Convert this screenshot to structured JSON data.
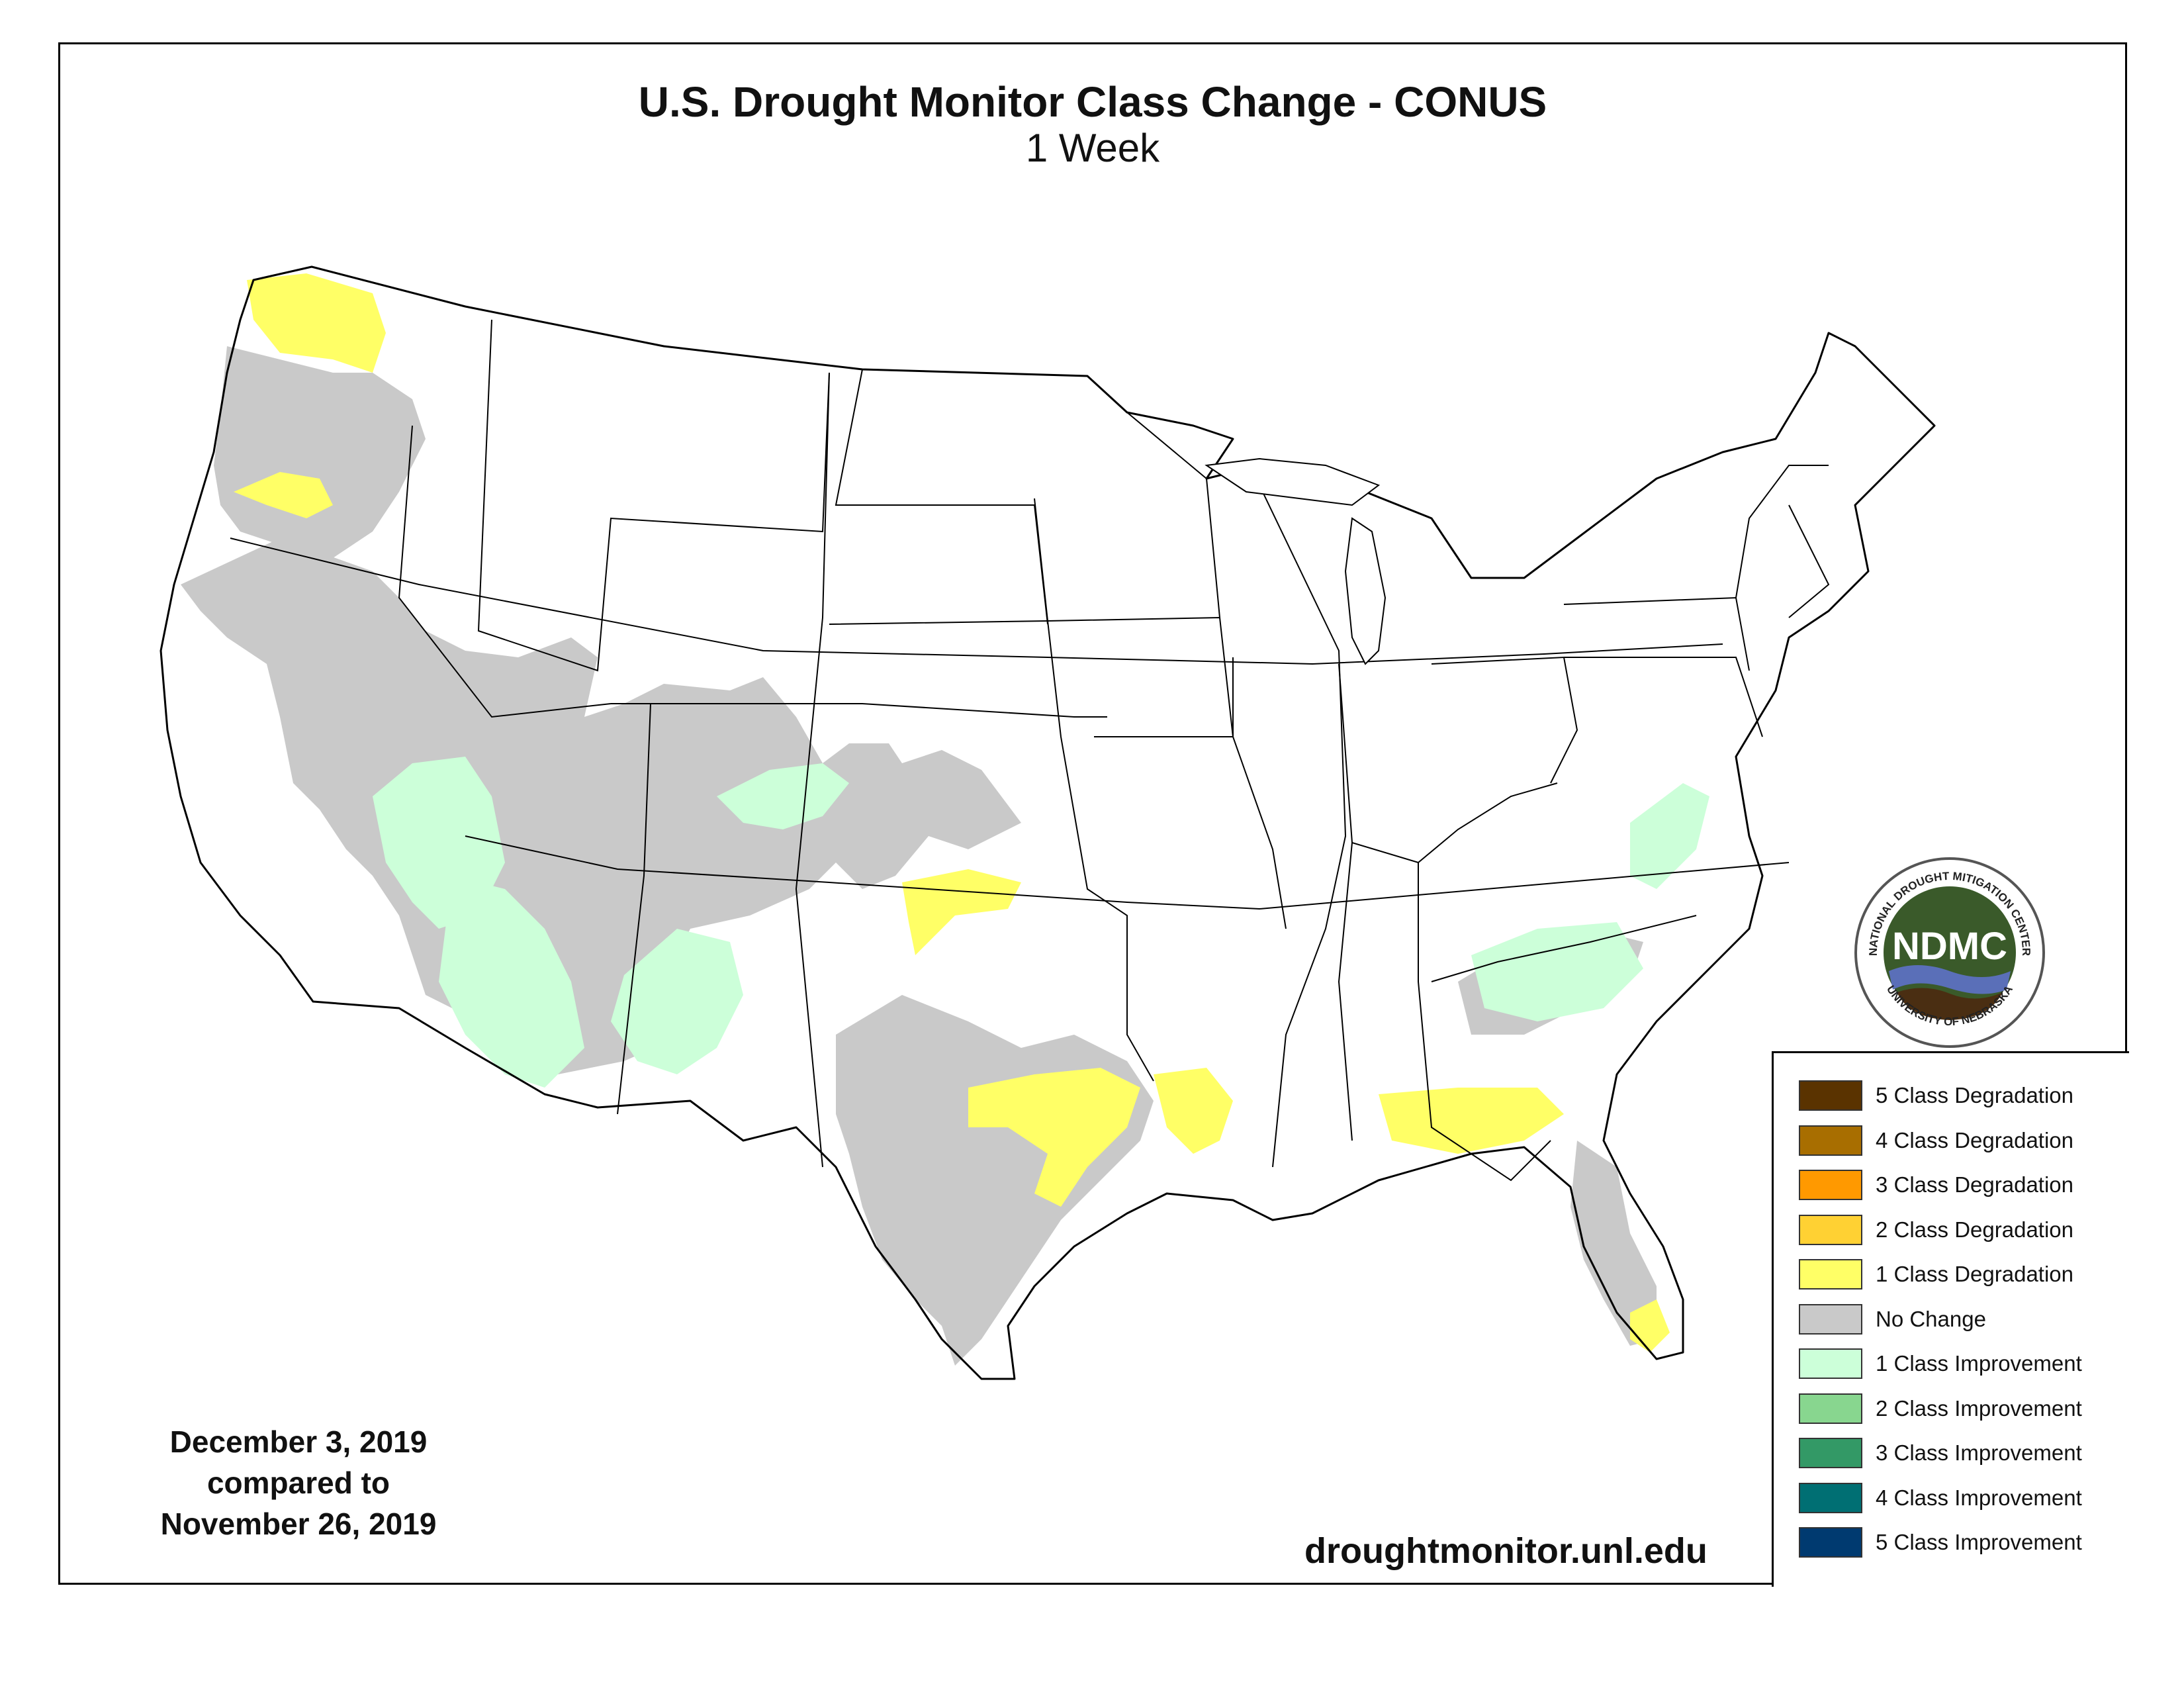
{
  "title": "U.S. Drought Monitor Class Change - CONUS",
  "subtitle": "1 Week",
  "date_text": {
    "line1": "December 3, 2019",
    "line2": "compared to",
    "line3": "November 26, 2019"
  },
  "website": "droughtmonitor.unl.edu",
  "logo": {
    "ring_text_top": "NATIONAL DROUGHT MITIGATION CENTER",
    "ring_text_bottom": "UNIVERSITY OF NEBRASKA",
    "abbr": "NDMC",
    "colors": {
      "green": "#3a5a2a",
      "blue": "#5a6fb8",
      "brown": "#4a2e12"
    }
  },
  "legend": [
    {
      "label": "5 Class Degradation",
      "color": "#5a3300"
    },
    {
      "label": "4 Class Degradation",
      "color": "#a86e00"
    },
    {
      "label": "3 Class Degradation",
      "color": "#ff9900"
    },
    {
      "label": "2 Class Degradation",
      "color": "#ffd133"
    },
    {
      "label": "1 Class Degradation",
      "color": "#ffff66"
    },
    {
      "label": "No Change",
      "color": "#c9c9c9"
    },
    {
      "label": "1 Class Improvement",
      "color": "#ccffd9"
    },
    {
      "label": "2 Class Improvement",
      "color": "#88d68f"
    },
    {
      "label": "3 Class Improvement",
      "color": "#339966"
    },
    {
      "label": "4 Class Improvement",
      "color": "#006f73"
    },
    {
      "label": "5 Class Improvement",
      "color": "#003a70"
    }
  ]
}
